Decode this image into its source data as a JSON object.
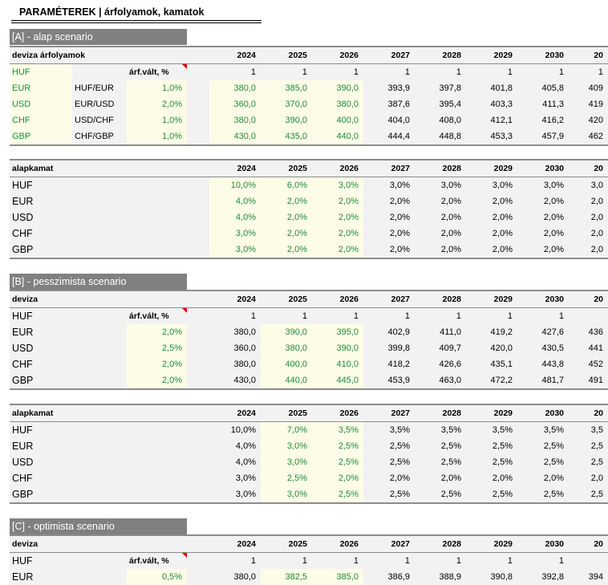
{
  "title": "PARAMÉTEREK | árfolyamok, kamatok",
  "years": [
    "2024",
    "2025",
    "2026",
    "2027",
    "2028",
    "2029",
    "2030",
    "20"
  ],
  "years_tail": [
    "2024",
    "2025",
    "2026",
    "2027",
    "2028",
    "2029",
    "2030",
    "20"
  ],
  "colors": {
    "section_bar": "#808080",
    "input_fill": "#fdfde7",
    "input_text": "#1f8a3b",
    "grid_fill": "#f2f2f2"
  },
  "scenarios": {
    "A": {
      "title": "[A] - alap scenario",
      "fx": {
        "header": "deviza árfolyamok",
        "chg_label": "árf.vált, %",
        "rows": [
          {
            "cur": "HUF",
            "pair": "",
            "chg": "",
            "vals": [
              "1",
              "1",
              "1",
              "1",
              "1",
              "1",
              "1",
              "1"
            ]
          },
          {
            "cur": "EUR",
            "pair": "HUF/EUR",
            "chg": "1,0%",
            "vals": [
              "380,0",
              "385,0",
              "390,0",
              "393,9",
              "397,8",
              "401,8",
              "405,8",
              "409"
            ]
          },
          {
            "cur": "USD",
            "pair": "EUR/USD",
            "chg": "2,0%",
            "vals": [
              "360,0",
              "370,0",
              "380,0",
              "387,6",
              "395,4",
              "403,3",
              "411,3",
              "419"
            ]
          },
          {
            "cur": "CHF",
            "pair": "USD/CHF",
            "chg": "1,0%",
            "vals": [
              "380,0",
              "390,0",
              "400,0",
              "404,0",
              "408,0",
              "412,1",
              "416,2",
              "420"
            ]
          },
          {
            "cur": "GBP",
            "pair": "CHF/GBP",
            "chg": "1,0%",
            "vals": [
              "430,0",
              "435,0",
              "440,0",
              "444,4",
              "448,8",
              "453,3",
              "457,9",
              "462"
            ]
          }
        ]
      },
      "rate": {
        "header": "alapkamat",
        "rows": [
          {
            "cur": "HUF",
            "vals": [
              "10,0%",
              "6,0%",
              "3,0%",
              "3,0%",
              "3,0%",
              "3,0%",
              "3,0%",
              "3,0"
            ]
          },
          {
            "cur": "EUR",
            "vals": [
              "4,0%",
              "2,0%",
              "2,0%",
              "2,0%",
              "2,0%",
              "2,0%",
              "2,0%",
              "2,0"
            ]
          },
          {
            "cur": "USD",
            "vals": [
              "4,0%",
              "2,0%",
              "2,0%",
              "2,0%",
              "2,0%",
              "2,0%",
              "2,0%",
              "2,0"
            ]
          },
          {
            "cur": "CHF",
            "vals": [
              "3,0%",
              "2,0%",
              "2,0%",
              "2,0%",
              "2,0%",
              "2,0%",
              "2,0%",
              "2,0"
            ]
          },
          {
            "cur": "GBP",
            "vals": [
              "3,0%",
              "2,0%",
              "2,0%",
              "2,0%",
              "2,0%",
              "2,0%",
              "2,0%",
              "2,0"
            ]
          }
        ]
      }
    },
    "B": {
      "title": "[B] - pesszimista scenario",
      "fx": {
        "header": "deviza",
        "chg_label": "árf.vált, %",
        "rows": [
          {
            "cur": "HUF",
            "chg": "",
            "vals": [
              "1",
              "1",
              "1",
              "1",
              "1",
              "1",
              "1",
              ""
            ]
          },
          {
            "cur": "EUR",
            "chg": "2,0%",
            "vals": [
              "380,0",
              "390,0",
              "395,0",
              "402,9",
              "411,0",
              "419,2",
              "427,6",
              "436"
            ]
          },
          {
            "cur": "USD",
            "chg": "2,5%",
            "vals": [
              "360,0",
              "380,0",
              "390,0",
              "399,8",
              "409,7",
              "420,0",
              "430,5",
              "441"
            ]
          },
          {
            "cur": "CHF",
            "chg": "2,0%",
            "vals": [
              "380,0",
              "400,0",
              "410,0",
              "418,2",
              "426,6",
              "435,1",
              "443,8",
              "452"
            ]
          },
          {
            "cur": "GBP",
            "chg": "2,0%",
            "vals": [
              "430,0",
              "440,0",
              "445,0",
              "453,9",
              "463,0",
              "472,2",
              "481,7",
              "491"
            ]
          }
        ]
      },
      "rate": {
        "header": "alapkamat",
        "rows": [
          {
            "cur": "HUF",
            "vals": [
              "10,0%",
              "7,0%",
              "3,5%",
              "3,5%",
              "3,5%",
              "3,5%",
              "3,5%",
              "3,5"
            ]
          },
          {
            "cur": "EUR",
            "vals": [
              "4,0%",
              "3,0%",
              "2,5%",
              "2,5%",
              "2,5%",
              "2,5%",
              "2,5%",
              "2,5"
            ]
          },
          {
            "cur": "USD",
            "vals": [
              "4,0%",
              "3,0%",
              "2,5%",
              "2,5%",
              "2,5%",
              "2,5%",
              "2,5%",
              "2,5"
            ]
          },
          {
            "cur": "CHF",
            "vals": [
              "3,0%",
              "2,5%",
              "2,0%",
              "2,0%",
              "2,0%",
              "2,0%",
              "2,0%",
              "2,0"
            ]
          },
          {
            "cur": "GBP",
            "vals": [
              "3,0%",
              "3,0%",
              "2,5%",
              "2,5%",
              "2,5%",
              "2,5%",
              "2,5%",
              "2,5"
            ]
          }
        ]
      }
    },
    "C": {
      "title": "[C] - optimista scenario",
      "fx": {
        "header": "deviza",
        "chg_label": "árf.vált, %",
        "rows": [
          {
            "cur": "HUF",
            "chg": "",
            "vals": [
              "1",
              "1",
              "1",
              "1",
              "1",
              "1",
              "1",
              ""
            ]
          },
          {
            "cur": "EUR",
            "chg": "0,5%",
            "vals": [
              "380,0",
              "382,5",
              "385,0",
              "386,9",
              "388,9",
              "390,8",
              "392,8",
              "394"
            ]
          }
        ]
      }
    }
  }
}
